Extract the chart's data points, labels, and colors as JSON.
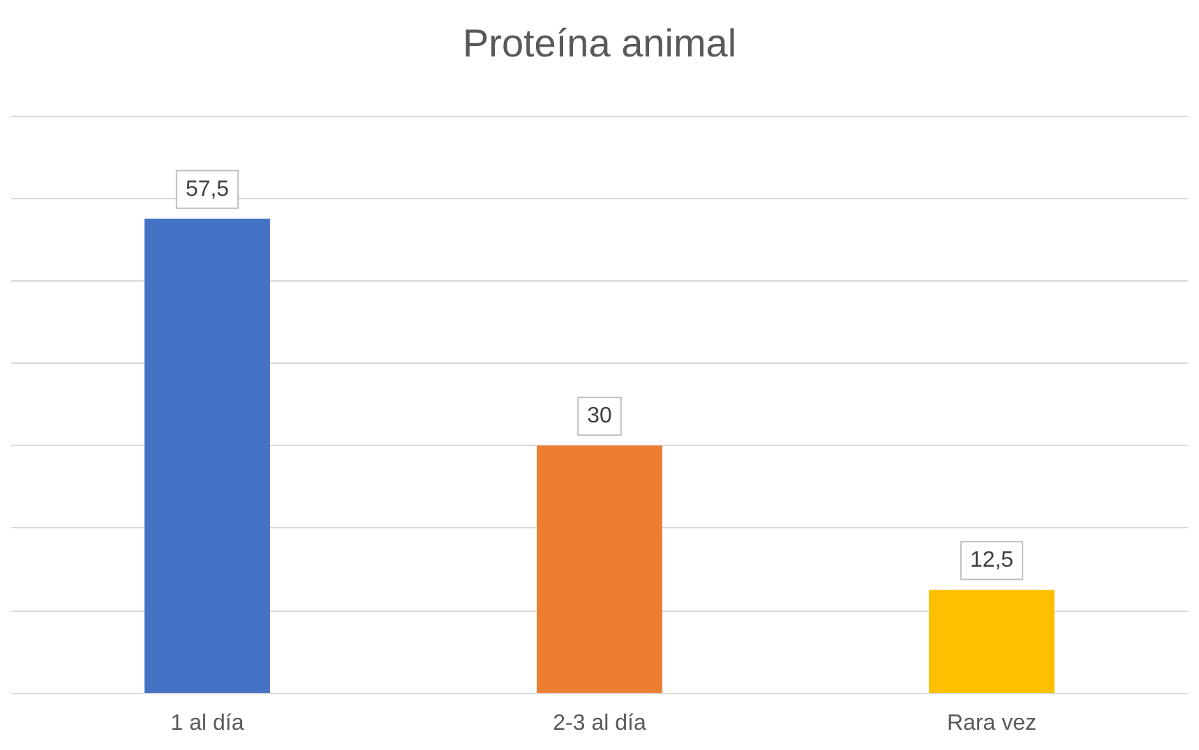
{
  "chart_data": {
    "type": "bar",
    "title": "Proteína animal",
    "categories": [
      "1 al día",
      "2-3 al día",
      "Rara vez"
    ],
    "values": [
      57.5,
      30,
      12.5
    ],
    "colors": [
      "#4472c4",
      "#ed7d31",
      "#ffc000"
    ],
    "value_labels": [
      "57,5",
      "30",
      "12,5"
    ],
    "ylim": [
      0,
      70
    ],
    "yticks": [
      {
        "value": 0,
        "label": null
      },
      {
        "value": 10,
        "label": null
      },
      {
        "value": 20,
        "label": null
      },
      {
        "value": 30,
        "label": null
      },
      {
        "value": 40,
        "label": null
      },
      {
        "value": 50,
        "label": null
      },
      {
        "value": 60,
        "label": null
      },
      {
        "value": 70,
        "label": null
      }
    ],
    "tick_labels": "x",
    "grid": "y"
  }
}
